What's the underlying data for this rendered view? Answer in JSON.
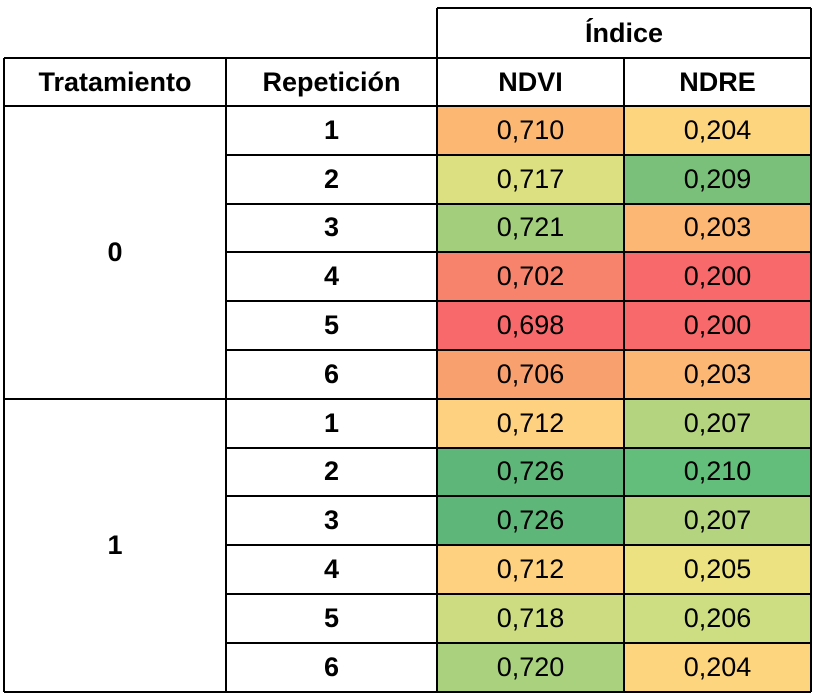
{
  "header": {
    "group_label": "Índice",
    "col_tratamiento": "Tratamiento",
    "col_repeticion": "Repetición",
    "col_ndvi": "NDVI",
    "col_ndre": "NDRE"
  },
  "groups": [
    {
      "tratamiento": "0",
      "rows": [
        {
          "rep": "1",
          "ndvi": "0,710",
          "ndvi_color": "#FCB872",
          "ndre": "0,204",
          "ndre_color": "#FDD57F"
        },
        {
          "rep": "2",
          "ndvi": "0,717",
          "ndvi_color": "#DCE081",
          "ndre": "0,209",
          "ndre_color": "#7BC07A"
        },
        {
          "rep": "3",
          "ndvi": "0,721",
          "ndvi_color": "#A3CF7D",
          "ndre": "0,203",
          "ndre_color": "#FCB774"
        },
        {
          "rep": "4",
          "ndvi": "0,702",
          "ndvi_color": "#F7836C",
          "ndre": "0,200",
          "ndre_color": "#F8696B"
        },
        {
          "rep": "5",
          "ndvi": "0,698",
          "ndvi_color": "#F8696B",
          "ndre": "0,200",
          "ndre_color": "#F8696B"
        },
        {
          "rep": "6",
          "ndvi": "0,706",
          "ndvi_color": "#F9A06F",
          "ndre": "0,203",
          "ndre_color": "#FCB774"
        }
      ]
    },
    {
      "tratamiento": "1",
      "rows": [
        {
          "rep": "1",
          "ndvi": "0,712",
          "ndvi_color": "#FDD17F",
          "ndre": "0,207",
          "ndre_color": "#B5D47F"
        },
        {
          "rep": "2",
          "ndvi": "0,726",
          "ndvi_color": "#5EB679",
          "ndre": "0,210",
          "ndre_color": "#63BE7B"
        },
        {
          "rep": "3",
          "ndvi": "0,726",
          "ndvi_color": "#5EB679",
          "ndre": "0,207",
          "ndre_color": "#B5D47F"
        },
        {
          "rep": "4",
          "ndvi": "0,712",
          "ndvi_color": "#FDD17F",
          "ndre": "0,205",
          "ndre_color": "#ECE282"
        },
        {
          "rep": "5",
          "ndvi": "0,718",
          "ndvi_color": "#CDDC81",
          "ndre": "0,206",
          "ndre_color": "#CCDD82"
        },
        {
          "rep": "6",
          "ndvi": "0,720",
          "ndvi_color": "#A9D17E",
          "ndre": "0,204",
          "ndre_color": "#FDD57F"
        }
      ]
    }
  ]
}
